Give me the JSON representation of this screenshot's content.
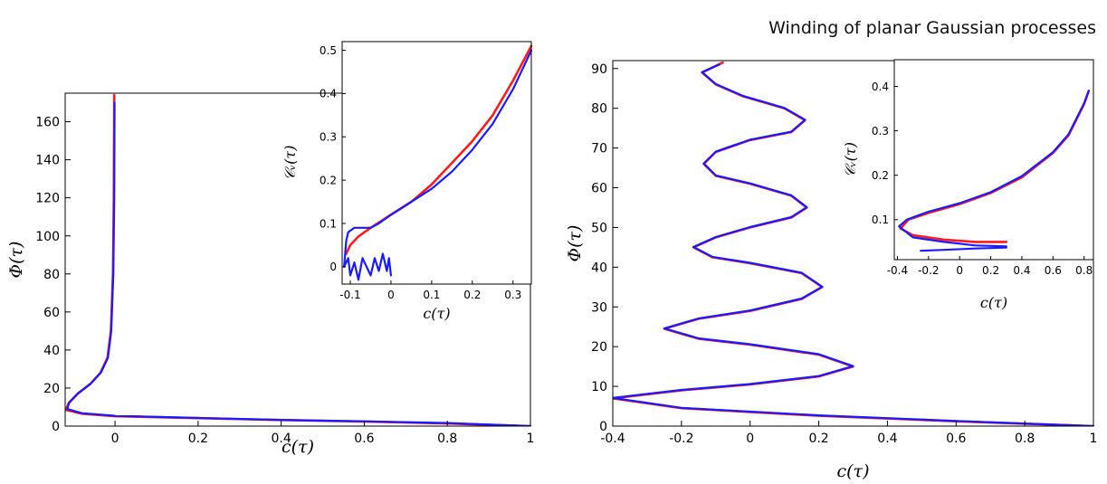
{
  "header": {
    "running_head": "Winding of planar Gaussian processes"
  },
  "colors": {
    "theory": "#ff1a1a",
    "simulation": "#1a1aff",
    "axis": "#000000"
  },
  "chart_data": [
    {
      "id": "left-main",
      "type": "line",
      "xlabel": "c(τ)",
      "ylabel": "Φ(τ)",
      "xlim": [
        -0.12,
        1
      ],
      "ylim": [
        0,
        175
      ],
      "xticks": [
        0,
        0.2,
        0.4,
        0.6,
        0.8,
        1
      ],
      "xtick_labels": [
        "0",
        "0.2",
        "0.4",
        "0.6",
        "0.8",
        "1"
      ],
      "yticks": [
        0,
        20,
        40,
        60,
        80,
        100,
        120,
        140,
        160
      ],
      "ytick_labels": [
        "0",
        "20",
        "40",
        "60",
        "80",
        "100",
        "120",
        "140",
        "160"
      ],
      "series": [
        {
          "role": "theory",
          "points": [
            [
              1,
              0
            ],
            [
              0.8,
              1.4
            ],
            [
              0.6,
              2.4
            ],
            [
              0.4,
              3.2
            ],
            [
              0.2,
              4.2
            ],
            [
              0,
              5.2
            ],
            [
              -0.08,
              6.5
            ],
            [
              -0.118,
              8.5
            ],
            [
              -0.112,
              12
            ],
            [
              -0.09,
              17
            ],
            [
              -0.06,
              22
            ],
            [
              -0.035,
              28
            ],
            [
              -0.018,
              36
            ],
            [
              -0.01,
              50
            ],
            [
              -0.005,
              80
            ],
            [
              -0.003,
              120
            ],
            [
              -0.002,
              174
            ]
          ]
        },
        {
          "role": "simulation",
          "points": [
            [
              1,
              0
            ],
            [
              0.8,
              1.6
            ],
            [
              0.6,
              2.5
            ],
            [
              0.4,
              3.3
            ],
            [
              0.2,
              4.3
            ],
            [
              0,
              5.4
            ],
            [
              -0.08,
              6.8
            ],
            [
              -0.115,
              9
            ],
            [
              -0.11,
              12.5
            ],
            [
              -0.088,
              17.5
            ],
            [
              -0.058,
              22.5
            ],
            [
              -0.033,
              28.5
            ],
            [
              -0.017,
              36
            ],
            [
              -0.009,
              50
            ],
            [
              -0.004,
              80
            ],
            [
              -0.002,
              120
            ],
            [
              -0.001,
              170
            ]
          ]
        }
      ]
    },
    {
      "id": "left-inset",
      "type": "line",
      "xlabel": "c(τ)",
      "ylabel": "𝒞ᵥ(τ)",
      "xlim": [
        -0.12,
        0.345
      ],
      "ylim": [
        -0.04,
        0.52
      ],
      "xticks": [
        -0.1,
        0,
        0.1,
        0.2,
        0.3
      ],
      "xtick_labels": [
        "-0.1",
        "0",
        "0.1",
        "0.2",
        "0.3"
      ],
      "yticks": [
        0,
        0.1,
        0.2,
        0.3,
        0.4,
        0.5
      ],
      "ytick_labels": [
        "0",
        "0.1",
        "0.2",
        "0.3",
        "0.4",
        "0.5"
      ],
      "series": [
        {
          "role": "theory",
          "points": [
            [
              -0.11,
              0.03
            ],
            [
              -0.1,
              0.05
            ],
            [
              -0.08,
              0.07
            ],
            [
              -0.05,
              0.09
            ],
            [
              0,
              0.12
            ],
            [
              0.05,
              0.15
            ],
            [
              0.1,
              0.19
            ],
            [
              0.15,
              0.24
            ],
            [
              0.2,
              0.29
            ],
            [
              0.25,
              0.35
            ],
            [
              0.3,
              0.43
            ],
            [
              0.345,
              0.51
            ]
          ]
        },
        {
          "role": "simulation",
          "points": [
            [
              -0.115,
              0.0
            ],
            [
              -0.11,
              0.06
            ],
            [
              -0.105,
              0.08
            ],
            [
              -0.09,
              0.09
            ],
            [
              -0.07,
              0.09
            ],
            [
              -0.05,
              0.09
            ],
            [
              -0.03,
              0.1
            ],
            [
              0,
              0.12
            ],
            [
              0.05,
              0.15
            ],
            [
              0.1,
              0.18
            ],
            [
              0.15,
              0.22
            ],
            [
              0.2,
              0.27
            ],
            [
              0.25,
              0.33
            ],
            [
              0.3,
              0.41
            ],
            [
              0.345,
              0.5
            ]
          ]
        },
        {
          "role": "simulation",
          "points": [
            [
              -0.115,
              0.0
            ],
            [
              -0.105,
              0.02
            ],
            [
              -0.1,
              -0.02
            ],
            [
              -0.09,
              0.01
            ],
            [
              -0.08,
              -0.03
            ],
            [
              -0.07,
              0.02
            ],
            [
              -0.06,
              0.0
            ],
            [
              -0.05,
              -0.02
            ],
            [
              -0.04,
              0.02
            ],
            [
              -0.03,
              -0.01
            ],
            [
              -0.02,
              0.03
            ],
            [
              -0.01,
              -0.01
            ],
            [
              -0.005,
              0.02
            ],
            [
              0,
              -0.02
            ]
          ]
        }
      ]
    },
    {
      "id": "right-main",
      "type": "line",
      "xlabel": "c(τ)",
      "ylabel": "Φ(τ)",
      "xlim": [
        -0.4,
        1
      ],
      "ylim": [
        0,
        92
      ],
      "xticks": [
        -0.4,
        -0.2,
        0,
        0.2,
        0.4,
        0.6,
        0.8,
        1
      ],
      "xtick_labels": [
        "-0.4",
        "-0.2",
        "0",
        "0.2",
        "0.4",
        "0.6",
        "0.8",
        "1"
      ],
      "yticks": [
        0,
        10,
        20,
        30,
        40,
        50,
        60,
        70,
        80,
        90
      ],
      "ytick_labels": [
        "0",
        "10",
        "20",
        "30",
        "40",
        "50",
        "60",
        "70",
        "80",
        "90"
      ],
      "series": [
        {
          "role": "theory",
          "points": [
            [
              1,
              0
            ],
            [
              0.6,
              1.2
            ],
            [
              0.2,
              2.6
            ],
            [
              -0.2,
              4.5
            ],
            [
              -0.4,
              7
            ],
            [
              -0.2,
              9
            ],
            [
              0,
              10.5
            ],
            [
              0.2,
              12.5
            ],
            [
              0.3,
              15
            ],
            [
              0.2,
              18
            ],
            [
              0,
              20.5
            ],
            [
              -0.15,
              22
            ],
            [
              -0.25,
              24.5
            ],
            [
              -0.15,
              27
            ],
            [
              0,
              29
            ],
            [
              0.15,
              32
            ],
            [
              0.21,
              35
            ],
            [
              0.15,
              38.5
            ],
            [
              0,
              41
            ],
            [
              -0.11,
              42.5
            ],
            [
              -0.165,
              45
            ],
            [
              -0.1,
              47.5
            ],
            [
              0,
              50
            ],
            [
              0.12,
              52.5
            ],
            [
              0.165,
              55
            ],
            [
              0.12,
              58
            ],
            [
              0,
              61
            ],
            [
              -0.1,
              63
            ],
            [
              -0.135,
              66
            ],
            [
              -0.1,
              69
            ],
            [
              0,
              72
            ],
            [
              0.12,
              74
            ],
            [
              0.16,
              77
            ],
            [
              0.1,
              80
            ],
            [
              -0.02,
              83
            ],
            [
              -0.1,
              86
            ],
            [
              -0.14,
              89
            ],
            [
              -0.08,
              91.5
            ]
          ]
        },
        {
          "role": "simulation",
          "points": [
            [
              1,
              0
            ],
            [
              0.6,
              1.3
            ],
            [
              0.2,
              2.7
            ],
            [
              -0.2,
              4.6
            ],
            [
              -0.4,
              7.1
            ],
            [
              -0.2,
              9.1
            ],
            [
              0,
              10.6
            ],
            [
              0.2,
              12.6
            ],
            [
              0.3,
              15.1
            ],
            [
              0.2,
              18.1
            ],
            [
              0,
              20.6
            ],
            [
              -0.15,
              22.1
            ],
            [
              -0.25,
              24.6
            ],
            [
              -0.15,
              27.1
            ],
            [
              0,
              29.1
            ],
            [
              0.15,
              32.1
            ],
            [
              0.21,
              35.1
            ],
            [
              0.15,
              38.6
            ],
            [
              0,
              41.1
            ],
            [
              -0.11,
              42.6
            ],
            [
              -0.165,
              45.1
            ],
            [
              -0.1,
              47.6
            ],
            [
              0,
              50.1
            ],
            [
              0.12,
              52.6
            ],
            [
              0.165,
              55.1
            ],
            [
              0.12,
              58.1
            ],
            [
              0,
              61.1
            ],
            [
              -0.1,
              63.1
            ],
            [
              -0.135,
              66.1
            ],
            [
              -0.1,
              69.1
            ],
            [
              0,
              72.1
            ],
            [
              0.12,
              74.1
            ],
            [
              0.16,
              77.1
            ],
            [
              0.1,
              80.1
            ],
            [
              -0.02,
              83.1
            ],
            [
              -0.1,
              86.1
            ],
            [
              -0.14,
              89.1
            ],
            [
              -0.09,
              91
            ]
          ]
        }
      ]
    },
    {
      "id": "right-inset",
      "type": "line",
      "xlabel": "c(τ)",
      "ylabel": "𝒞ᵥ(τ)",
      "xlim": [
        -0.42,
        0.86
      ],
      "ylim": [
        0.01,
        0.46
      ],
      "xticks": [
        -0.4,
        -0.2,
        0,
        0.2,
        0.4,
        0.6,
        0.8
      ],
      "xtick_labels": [
        "-0.4",
        "-0.2",
        "0",
        "0.2",
        "0.4",
        "0.6",
        "0.8"
      ],
      "yticks": [
        0.1,
        0.2,
        0.3,
        0.4
      ],
      "ytick_labels": [
        "0.1",
        "0.2",
        "0.3",
        "0.4"
      ],
      "series": [
        {
          "role": "theory",
          "points": [
            [
              0.3,
              0.05
            ],
            [
              0.1,
              0.05
            ],
            [
              -0.1,
              0.055
            ],
            [
              -0.3,
              0.065
            ],
            [
              -0.38,
              0.08
            ],
            [
              -0.33,
              0.1
            ],
            [
              -0.2,
              0.115
            ],
            [
              0,
              0.135
            ],
            [
              0.2,
              0.16
            ],
            [
              0.4,
              0.195
            ],
            [
              0.6,
              0.25
            ],
            [
              0.7,
              0.29
            ],
            [
              0.8,
              0.36
            ],
            [
              0.83,
              0.39
            ]
          ]
        },
        {
          "role": "simulation",
          "points": [
            [
              0.3,
              0.04
            ],
            [
              0.1,
              0.042
            ],
            [
              -0.1,
              0.05
            ],
            [
              -0.3,
              0.06
            ],
            [
              -0.39,
              0.085
            ],
            [
              -0.34,
              0.1
            ],
            [
              -0.2,
              0.118
            ],
            [
              0,
              0.137
            ],
            [
              0.2,
              0.162
            ],
            [
              0.4,
              0.198
            ],
            [
              0.6,
              0.252
            ],
            [
              0.7,
              0.292
            ],
            [
              0.8,
              0.362
            ],
            [
              0.83,
              0.39
            ]
          ]
        },
        {
          "role": "simulation",
          "points": [
            [
              -0.25,
              0.03
            ],
            [
              -0.1,
              0.032
            ],
            [
              0.1,
              0.035
            ],
            [
              0.3,
              0.037
            ]
          ]
        }
      ]
    }
  ]
}
